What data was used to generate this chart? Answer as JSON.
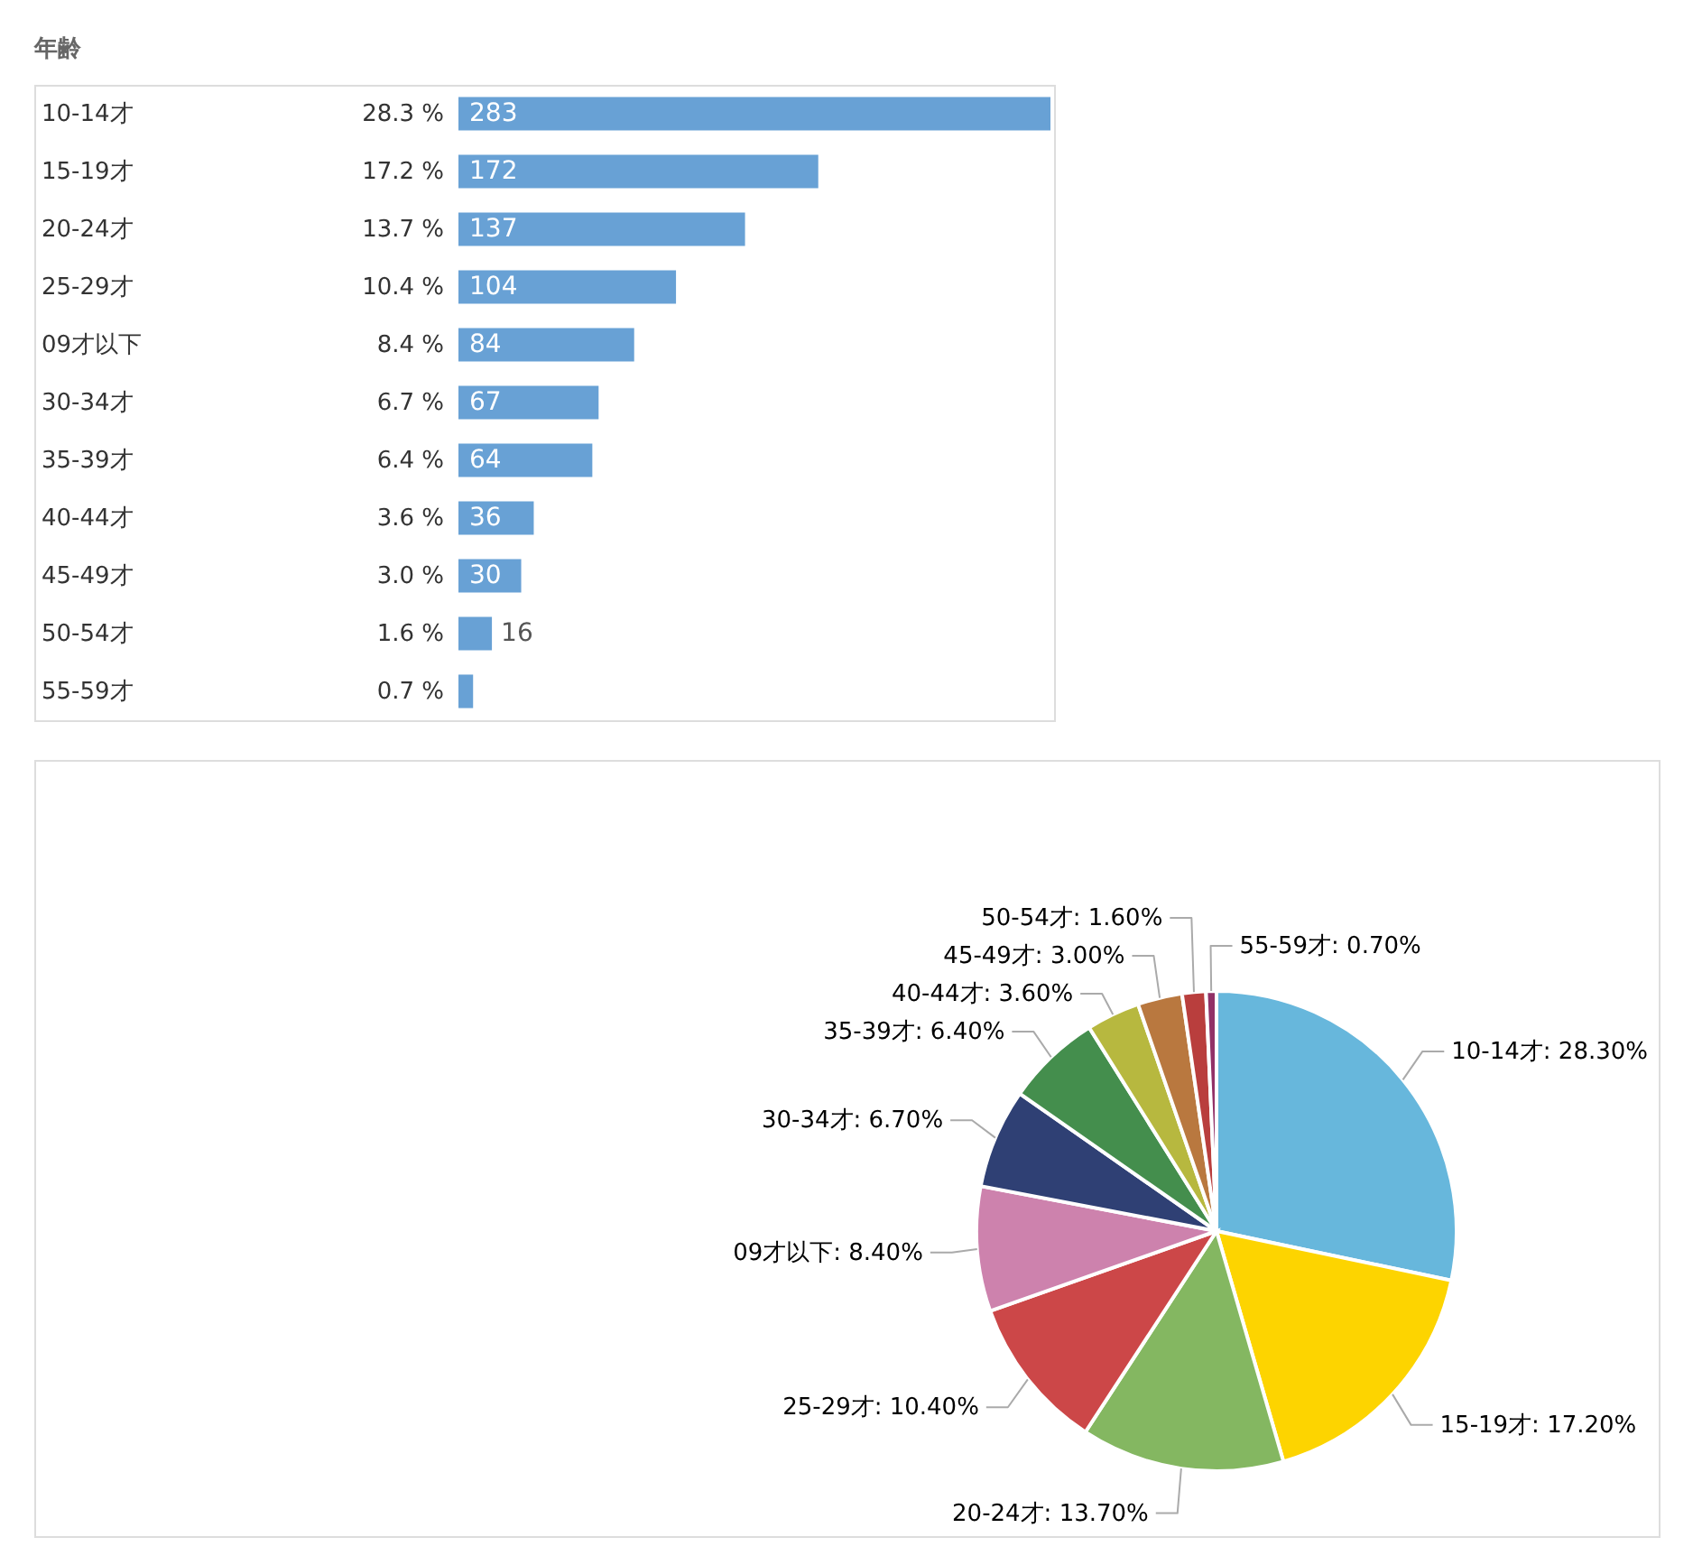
{
  "chart_data": [
    {
      "type": "bar",
      "orientation": "horizontal",
      "title": "年齢",
      "categories": [
        "10-14才",
        "15-19才",
        "20-24才",
        "25-29才",
        "09才以下",
        "30-34才",
        "35-39才",
        "40-44才",
        "45-49才",
        "50-54才",
        "55-59才"
      ],
      "values": [
        283,
        172,
        137,
        104,
        84,
        67,
        64,
        36,
        30,
        16,
        7
      ],
      "color": "#68a1d5",
      "value_labels": [
        "283",
        "172",
        "137",
        "104",
        "84",
        "67",
        "64",
        "36",
        "30",
        "16",
        null
      ],
      "annotations": [
        "28.3 %",
        "17.2 %",
        "13.7 %",
        "10.4 %",
        "8.4 %",
        "6.7 %",
        "6.4 %",
        "3.6 %",
        "3.0 %",
        "1.6 %",
        "0.7 %"
      ]
    },
    {
      "type": "pie",
      "categories": [
        "10-14才",
        "15-19才",
        "20-24才",
        "25-29才",
        "09才以下",
        "30-34才",
        "35-39才",
        "40-44才",
        "45-49才",
        "50-54才",
        "55-59才"
      ],
      "values": [
        28.3,
        17.2,
        13.7,
        10.4,
        8.4,
        6.7,
        6.4,
        3.6,
        3.0,
        1.6,
        0.7
      ],
      "colors": [
        "#67b7dc",
        "#fdd400",
        "#84b761",
        "#cc4748",
        "#cd82ad",
        "#2f4074",
        "#448e4d",
        "#b7b83f",
        "#b9783f",
        "#b93e3d",
        "#913167"
      ],
      "value_labels": [
        ": 28.30%",
        ": 17.20%",
        ": 13.70%",
        ": 10.40%",
        ": 8.40%",
        ": 6.70%",
        ": 6.40%",
        ": 3.60%",
        ": 3.00%",
        ": 1.60%",
        ": 0.70%"
      ]
    }
  ]
}
